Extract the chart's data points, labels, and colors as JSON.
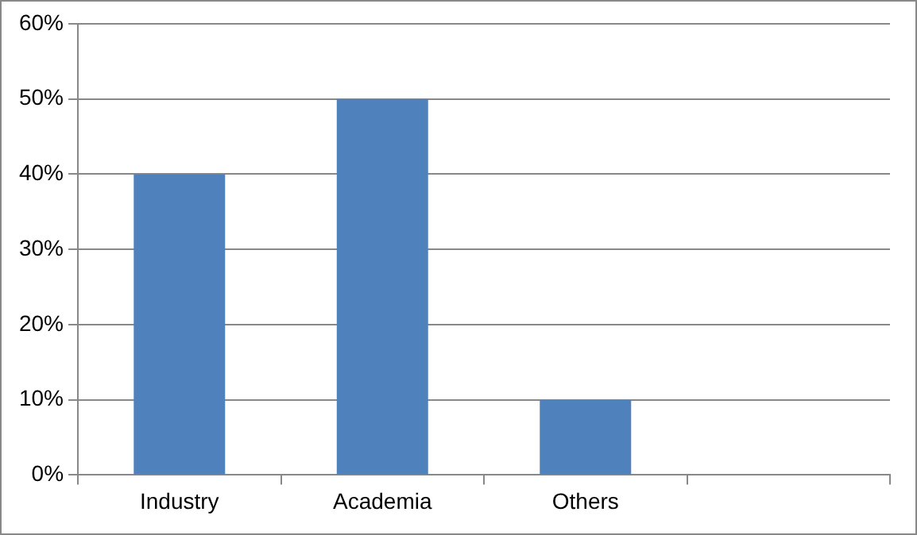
{
  "chart_data": {
    "type": "bar",
    "categories": [
      "Industry",
      "Academia",
      "Others",
      null
    ],
    "values": [
      40,
      50,
      10,
      null
    ],
    "color": "#4f81bd",
    "ylim": [
      0,
      60
    ],
    "yticks": [
      {
        "value": 0,
        "label": "0%"
      },
      {
        "value": 10,
        "label": "10%"
      },
      {
        "value": 20,
        "label": "20%"
      },
      {
        "value": 30,
        "label": "30%"
      },
      {
        "value": 40,
        "label": "40%"
      },
      {
        "value": 50,
        "label": "50%"
      },
      {
        "value": 60,
        "label": "60%"
      }
    ],
    "grid": "y",
    "legend": false
  }
}
